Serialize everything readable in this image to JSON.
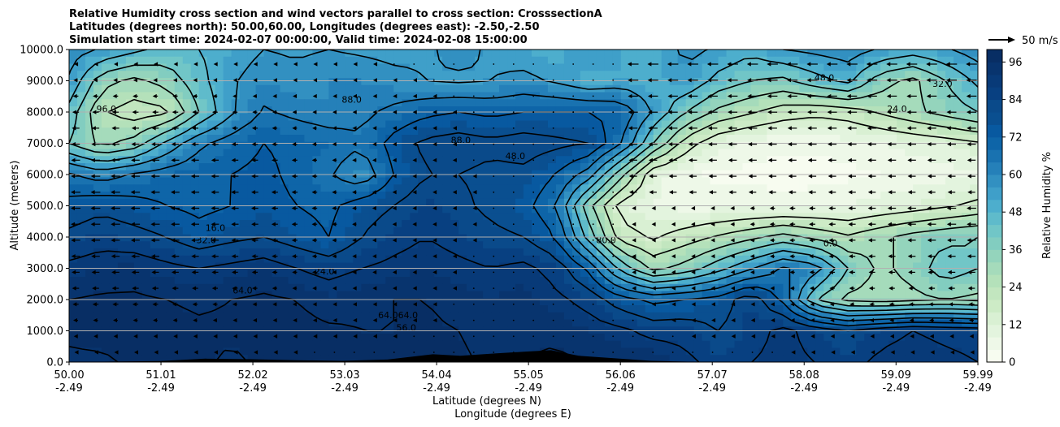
{
  "chart_data": {
    "type": "contourf",
    "title_lines": [
      "Relative Humidity cross section and wind vectors parallel to cross section: CrosssectionA",
      "Latitudes (degrees north): 50.00,60.00, Longitudes (degrees east): -2.50,-2.50",
      "Simulation start time: 2024-02-07 00:00:00, Valid time: 2024-02-08 15:00:00"
    ],
    "ylabel": "Altitude (meters)",
    "xlabel_lines": [
      "Latitude (degrees N)",
      "Longitude (degrees E)"
    ],
    "ylim": [
      0,
      10000
    ],
    "xlim": [
      50.0,
      59.99
    ],
    "y_ticks": [
      "0.0",
      "1000.0",
      "2000.0",
      "3000.0",
      "4000.0",
      "5000.0",
      "6000.0",
      "7000.0",
      "8000.0",
      "9000.0",
      "10000.0"
    ],
    "x_ticks": [
      {
        "lat": "50.00",
        "lon": "-2.49"
      },
      {
        "lat": "51.01",
        "lon": "-2.49"
      },
      {
        "lat": "52.02",
        "lon": "-2.49"
      },
      {
        "lat": "53.03",
        "lon": "-2.49"
      },
      {
        "lat": "54.04",
        "lon": "-2.49"
      },
      {
        "lat": "55.05",
        "lon": "-2.49"
      },
      {
        "lat": "56.06",
        "lon": "-2.49"
      },
      {
        "lat": "57.07",
        "lon": "-2.49"
      },
      {
        "lat": "58.08",
        "lon": "-2.49"
      },
      {
        "lat": "59.09",
        "lon": "-2.49"
      },
      {
        "lat": "59.99",
        "lon": "-2.49"
      }
    ],
    "grid": "horizontal",
    "colorbar": {
      "label": "Relative Humidity %",
      "ticks": [
        "0",
        "12",
        "24",
        "36",
        "48",
        "60",
        "72",
        "84",
        "96"
      ],
      "levels": [
        0,
        4,
        8,
        12,
        16,
        20,
        24,
        28,
        32,
        36,
        40,
        44,
        48,
        52,
        56,
        60,
        64,
        68,
        72,
        76,
        80,
        84,
        88,
        92,
        96,
        100
      ],
      "colors": [
        "#f7fcf0",
        "#eef8e8",
        "#e3f4de",
        "#d9f0d3",
        "#cdebc6",
        "#c2e6bf",
        "#b4e1ba",
        "#a5dbbb",
        "#94d4bc",
        "#82cdc0",
        "#71c6c7",
        "#5fbbcb",
        "#4daecd",
        "#3f9fc9",
        "#3290c1",
        "#2580b9",
        "#1972b0",
        "#0e65a8",
        "#0859a0",
        "#0a4f90",
        "#0a4a8a",
        "#084081",
        "#083a78",
        "#08346e",
        "#082e64"
      ]
    },
    "reference_vector": "50 m/s",
    "rh_field_fraction": [
      [
        0.95,
        0.95,
        0.97,
        0.98,
        0.97,
        0.95,
        0.97,
        0.98,
        0.97,
        0.96,
        0.97,
        0.98,
        0.97,
        0.95,
        0.96,
        0.97,
        0.96,
        0.95,
        0.96,
        0.9,
        0.85,
        0.88,
        0.9,
        0.88,
        0.85,
        0.9,
        0.92,
        0.9,
        0.88
      ],
      [
        0.97,
        0.98,
        0.98,
        0.98,
        0.97,
        0.97,
        0.98,
        0.98,
        0.97,
        0.96,
        0.96,
        0.97,
        0.96,
        0.94,
        0.95,
        0.95,
        0.92,
        0.9,
        0.85,
        0.85,
        0.8,
        0.85,
        0.9,
        0.85,
        0.8,
        0.85,
        0.88,
        0.86,
        0.85
      ],
      [
        0.96,
        0.97,
        0.97,
        0.96,
        0.95,
        0.96,
        0.97,
        0.96,
        0.93,
        0.95,
        0.96,
        0.96,
        0.94,
        0.92,
        0.94,
        0.9,
        0.85,
        0.75,
        0.7,
        0.72,
        0.75,
        0.85,
        0.7,
        0.4,
        0.3,
        0.28,
        0.3,
        0.32,
        0.3
      ],
      [
        0.9,
        0.92,
        0.93,
        0.9,
        0.88,
        0.9,
        0.92,
        0.88,
        0.85,
        0.88,
        0.9,
        0.92,
        0.9,
        0.88,
        0.9,
        0.85,
        0.7,
        0.45,
        0.3,
        0.35,
        0.45,
        0.55,
        0.65,
        0.6,
        0.4,
        0.3,
        0.35,
        0.45,
        0.4
      ],
      [
        0.82,
        0.85,
        0.83,
        0.8,
        0.75,
        0.78,
        0.8,
        0.76,
        0.72,
        0.8,
        0.85,
        0.88,
        0.85,
        0.82,
        0.8,
        0.72,
        0.45,
        0.2,
        0.15,
        0.2,
        0.25,
        0.3,
        0.35,
        0.3,
        0.25,
        0.3,
        0.35,
        0.38,
        0.4
      ],
      [
        0.75,
        0.78,
        0.75,
        0.72,
        0.7,
        0.72,
        0.75,
        0.72,
        0.7,
        0.76,
        0.8,
        0.85,
        0.82,
        0.78,
        0.75,
        0.65,
        0.35,
        0.12,
        0.08,
        0.06,
        0.06,
        0.06,
        0.06,
        0.07,
        0.08,
        0.1,
        0.12,
        0.15,
        0.18
      ],
      [
        0.65,
        0.6,
        0.65,
        0.68,
        0.7,
        0.72,
        0.74,
        0.7,
        0.65,
        0.58,
        0.72,
        0.8,
        0.8,
        0.78,
        0.78,
        0.72,
        0.6,
        0.35,
        0.1,
        0.05,
        0.03,
        0.03,
        0.02,
        0.02,
        0.03,
        0.04,
        0.05,
        0.06,
        0.08
      ],
      [
        0.4,
        0.3,
        0.35,
        0.5,
        0.62,
        0.68,
        0.72,
        0.7,
        0.68,
        0.65,
        0.75,
        0.82,
        0.84,
        0.82,
        0.84,
        0.82,
        0.8,
        0.65,
        0.4,
        0.2,
        0.1,
        0.06,
        0.05,
        0.05,
        0.06,
        0.08,
        0.1,
        0.12,
        0.15
      ],
      [
        0.45,
        0.25,
        0.2,
        0.22,
        0.4,
        0.55,
        0.65,
        0.62,
        0.6,
        0.62,
        0.66,
        0.7,
        0.72,
        0.7,
        0.72,
        0.72,
        0.72,
        0.7,
        0.55,
        0.4,
        0.3,
        0.25,
        0.2,
        0.18,
        0.2,
        0.25,
        0.3,
        0.35,
        0.4
      ],
      [
        0.55,
        0.35,
        0.3,
        0.35,
        0.45,
        0.55,
        0.6,
        0.58,
        0.6,
        0.6,
        0.58,
        0.56,
        0.55,
        0.56,
        0.58,
        0.55,
        0.5,
        0.52,
        0.5,
        0.55,
        0.45,
        0.4,
        0.38,
        0.45,
        0.5,
        0.35,
        0.3,
        0.4,
        0.5
      ],
      [
        0.6,
        0.55,
        0.5,
        0.45,
        0.48,
        0.52,
        0.56,
        0.55,
        0.56,
        0.55,
        0.54,
        0.55,
        0.58,
        0.55,
        0.52,
        0.5,
        0.55,
        0.52,
        0.5,
        0.58,
        0.55,
        0.5,
        0.56,
        0.58,
        0.6,
        0.55,
        0.52,
        0.55,
        0.6
      ]
    ],
    "rh_field_axes": {
      "rows_altitude_m": [
        0,
        1000,
        2000,
        3000,
        4000,
        5000,
        6000,
        7000,
        8000,
        9000,
        10000
      ],
      "cols_lat_range": [
        50.0,
        59.99
      ]
    },
    "contour_labels": [
      "96.0",
      "88.0",
      "80.0",
      "72.0",
      "64.0",
      "56.0",
      "48.0",
      "40.0",
      "32.0",
      "24.0",
      "16.0",
      "0.0",
      "64.064.0"
    ]
  }
}
